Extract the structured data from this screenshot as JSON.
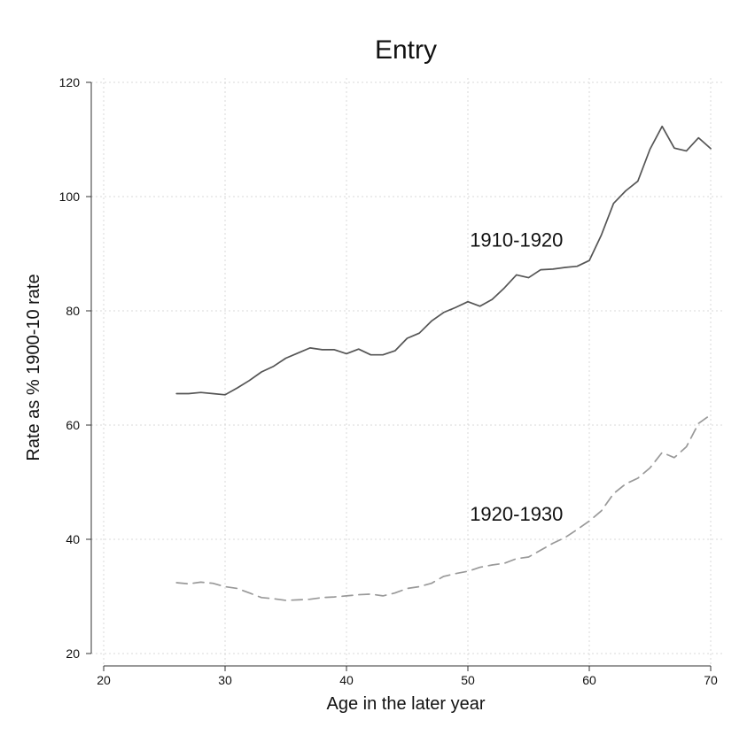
{
  "chart_data": {
    "type": "line",
    "title": "Entry",
    "xlabel": "Age in the later year",
    "ylabel": "Rate as % 1900-10 rate",
    "xlim": [
      20,
      70
    ],
    "ylim": [
      20,
      120
    ],
    "xticks": [
      20,
      30,
      40,
      50,
      60,
      70
    ],
    "yticks": [
      20,
      40,
      60,
      80,
      100,
      120
    ],
    "grid": true,
    "series": [
      {
        "name": "1910-1920",
        "style": "solid",
        "color": "#555555",
        "x": [
          26,
          27,
          28,
          29,
          30,
          31,
          32,
          33,
          34,
          35,
          36,
          37,
          38,
          39,
          40,
          41,
          42,
          43,
          44,
          45,
          46,
          47,
          48,
          49,
          50,
          51,
          52,
          53,
          54,
          55,
          56,
          57,
          58,
          59,
          60,
          61,
          62,
          63,
          64,
          65,
          66,
          67,
          68,
          69,
          70
        ],
        "y": [
          65.5,
          65.5,
          65.7,
          65.5,
          65.3,
          66.5,
          67.8,
          69.3,
          70.3,
          71.7,
          72.6,
          73.5,
          73.2,
          73.2,
          72.5,
          73.3,
          72.3,
          72.3,
          73.0,
          75.2,
          76.1,
          78.2,
          79.7,
          80.6,
          81.6,
          80.8,
          82.0,
          84.0,
          86.3,
          85.8,
          87.2,
          87.3,
          87.6,
          87.8,
          88.8,
          93.3,
          98.8,
          101.0,
          102.7,
          108.3,
          112.3,
          108.5,
          108.0,
          110.3,
          108.4
        ]
      },
      {
        "name": "1920-1930",
        "style": "dashed",
        "color": "#999999",
        "x": [
          26,
          27,
          28,
          29,
          30,
          31,
          32,
          33,
          34,
          35,
          36,
          37,
          38,
          39,
          40,
          41,
          42,
          43,
          44,
          45,
          46,
          47,
          48,
          49,
          50,
          51,
          52,
          53,
          54,
          55,
          56,
          57,
          58,
          59,
          60,
          61,
          62,
          63,
          64,
          65,
          66,
          67,
          68,
          69,
          70
        ],
        "y": [
          32.4,
          32.2,
          32.5,
          32.3,
          31.7,
          31.4,
          30.6,
          29.8,
          29.6,
          29.3,
          29.4,
          29.5,
          29.8,
          29.9,
          30.1,
          30.3,
          30.4,
          30.1,
          30.6,
          31.4,
          31.7,
          32.3,
          33.5,
          34.0,
          34.4,
          35.1,
          35.5,
          35.8,
          36.6,
          36.9,
          38.1,
          39.3,
          40.3,
          41.7,
          43.2,
          45.0,
          48.0,
          49.7,
          50.7,
          52.5,
          55.2,
          54.3,
          56.2,
          60.3,
          61.8
        ]
      }
    ],
    "annotations": [
      {
        "text": "1910-1920",
        "x": 54,
        "y": 92.5
      },
      {
        "text": "1920-1930",
        "x": 54,
        "y": 44.5
      }
    ]
  }
}
